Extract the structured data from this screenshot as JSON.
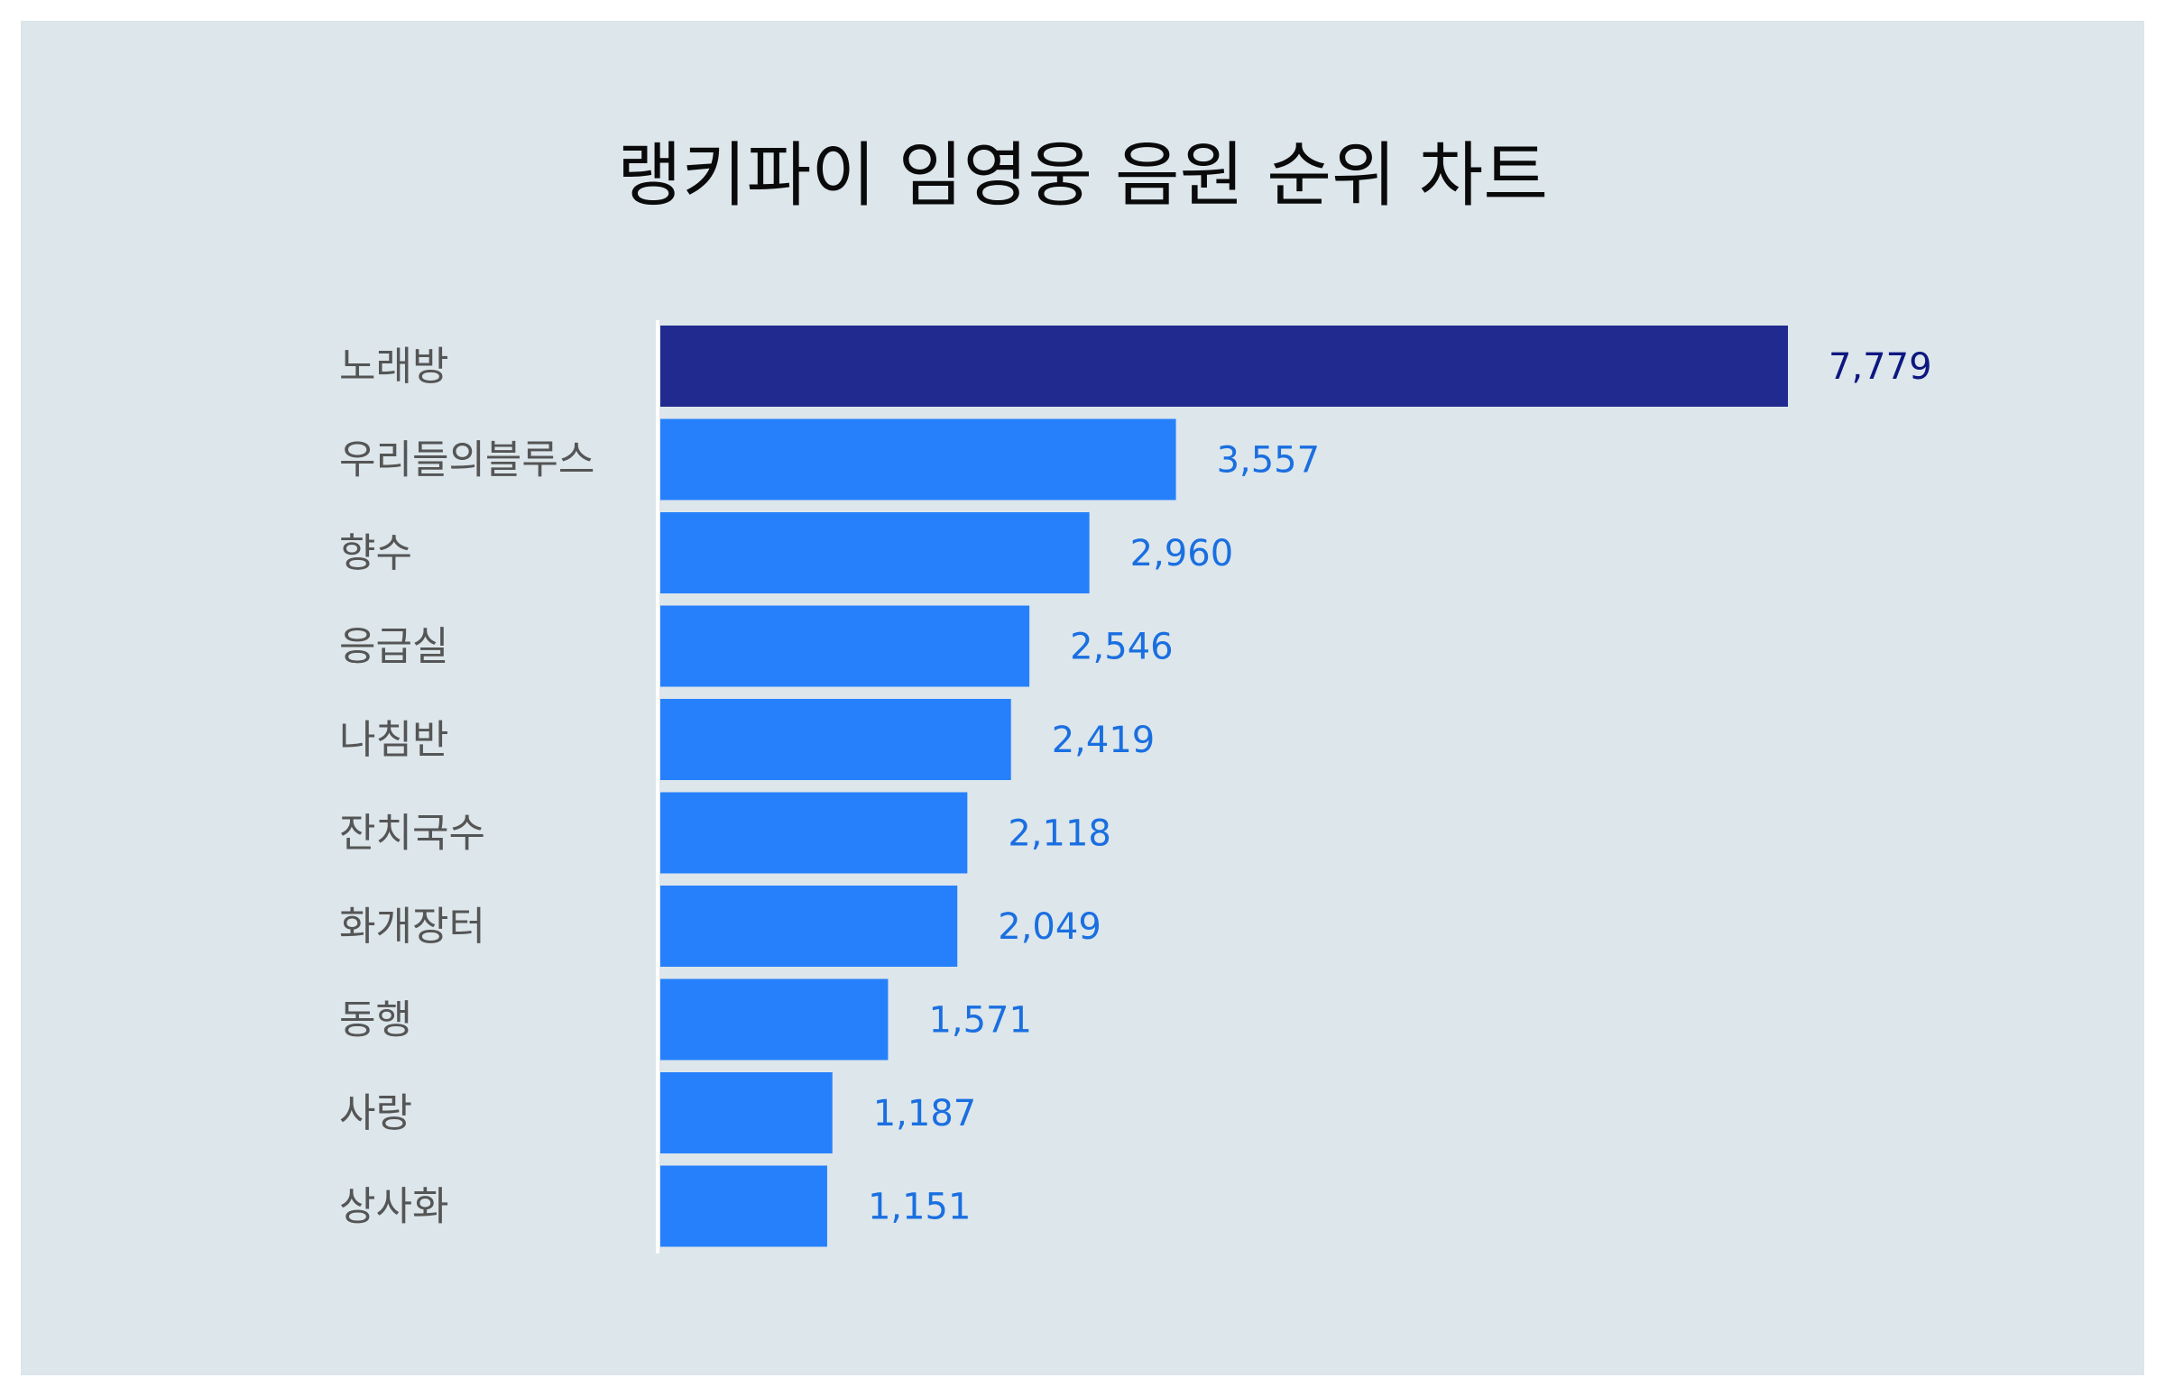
{
  "chart_data": {
    "type": "bar",
    "orientation": "horizontal",
    "title": "랭키파이 임영웅 음원 순위 차트",
    "xlabel": "",
    "ylabel": "",
    "categories": [
      "노래방",
      "우리들의블루스",
      "향수",
      "응급실",
      "나침반",
      "잔치국수",
      "화개장터",
      "동행",
      "사랑",
      "상사화"
    ],
    "values": [
      7779,
      3557,
      2960,
      2546,
      2419,
      2118,
      2049,
      1571,
      1187,
      1151
    ],
    "value_labels": [
      "7,779",
      "3,557",
      "2,960",
      "2,546",
      "2,419",
      "2,118",
      "2,049",
      "1,571",
      "1,187",
      "1,151"
    ],
    "xlim": [
      0,
      7779
    ],
    "grid": false,
    "legend": "none",
    "colors": {
      "highlight_bar": "#212a8f",
      "bar": "#2680fc",
      "highlight_label": "#0e1680",
      "label": "#1a6fe0",
      "category_label": "#555555",
      "background": "#dce6eb",
      "axis": "#ffffff"
    }
  }
}
